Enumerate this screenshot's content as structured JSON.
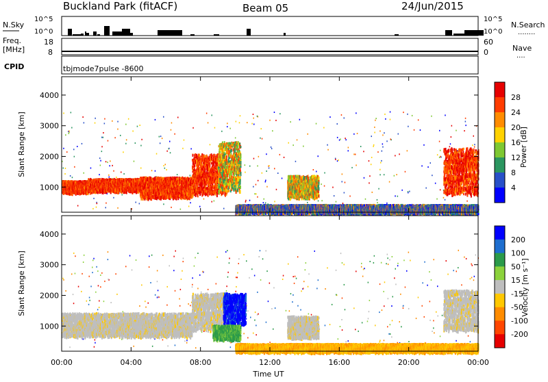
{
  "header": {
    "site": "Buckland Park (fitACF)",
    "beam": "Beam 05",
    "date": "24/Jun/2015"
  },
  "strips": {
    "nsky_label": "N.Sky",
    "nsearch_label": "N.Search",
    "nsearch_dots": "........",
    "freq_label_1": "Freq.",
    "freq_label_2": "[MHz]",
    "nave_label": "Nave",
    "nave_dots": "....",
    "cpid_label": "CPID",
    "cpid_value": "tbjmode7pulse -8600",
    "left_top_tick": "10^5",
    "left_bottom_tick": "10^0",
    "right_top_tick": "10^5",
    "right_bottom_tick": "10^0",
    "freq_ticks": [
      "18",
      "8"
    ],
    "nave_ticks": [
      "60",
      "0"
    ]
  },
  "colors": {
    "power": [
      "#0000ff",
      "#2850c8",
      "#2b9660",
      "#7ec832",
      "#ffd200",
      "#ff8c00",
      "#ff3c00",
      "#e60000"
    ],
    "velocity": [
      "#0000ff",
      "#1e6ecf",
      "#2b9a4a",
      "#8cd23c",
      "#bebebe",
      "#ffc800",
      "#ff8c00",
      "#ff4600",
      "#e60000"
    ]
  },
  "chart_data": [
    {
      "type": "heatmap",
      "name": "power",
      "xlabel": "",
      "ylabel": "Slant Range [km]",
      "ylim": [
        180,
        4600
      ],
      "xlim": [
        0,
        24
      ],
      "yticks": [
        "1000",
        "2000",
        "3000",
        "4000"
      ],
      "ytick_values": [
        1000,
        2000,
        3000,
        4000
      ],
      "colorbar": {
        "label": "Power [dB]",
        "levels": [
          "4",
          "8",
          "12",
          "16",
          "20",
          "24",
          "28"
        ],
        "range": [
          0,
          32
        ]
      },
      "bands": [
        {
          "t": [
            0,
            1.5
          ],
          "r": [
            860,
            1230
          ],
          "level": "high"
        },
        {
          "t": [
            1.5,
            4.5
          ],
          "r": [
            900,
            1300
          ],
          "level": "high"
        },
        {
          "t": [
            4.5,
            7.5
          ],
          "r": [
            700,
            1350
          ],
          "level": "high"
        },
        {
          "t": [
            7.5,
            9.5
          ],
          "r": [
            800,
            2100
          ],
          "level": "high"
        },
        {
          "t": [
            9.0,
            10.3
          ],
          "r": [
            900,
            2500
          ],
          "level": "mid"
        },
        {
          "t": [
            13.0,
            14.8
          ],
          "r": [
            700,
            1400
          ],
          "level": "mid"
        },
        {
          "t": [
            22.0,
            24.0
          ],
          "r": [
            800,
            2300
          ],
          "level": "high"
        },
        {
          "t": [
            10.0,
            24.0
          ],
          "r": [
            200,
            450
          ],
          "level": "low"
        }
      ]
    },
    {
      "type": "heatmap",
      "name": "velocity",
      "xlabel": "Time UT",
      "ylabel": "Slant Range [km]",
      "ylim": [
        180,
        4600
      ],
      "xlim": [
        0,
        24
      ],
      "yticks": [
        "1000",
        "2000",
        "3000",
        "4000"
      ],
      "ytick_values": [
        1000,
        2000,
        3000,
        4000
      ],
      "xticks": [
        "00:00",
        "04:00",
        "08:00",
        "12:00",
        "16:00",
        "20:00",
        "00:00"
      ],
      "xtick_values": [
        0,
        4,
        8,
        12,
        16,
        20,
        24
      ],
      "colorbar": {
        "label": "Velocity [m s⁻¹]",
        "levels": [
          "200",
          "100",
          "50",
          "15",
          "-15",
          "-50",
          "-100",
          "-200"
        ]
      },
      "bands": [
        {
          "t": [
            0,
            7.5
          ],
          "r": [
            700,
            1450
          ],
          "level": "grey"
        },
        {
          "t": [
            7.5,
            9.5
          ],
          "r": [
            900,
            2100
          ],
          "level": "grey"
        },
        {
          "t": [
            9.3,
            10.6
          ],
          "r": [
            1100,
            2100
          ],
          "level": "blue"
        },
        {
          "t": [
            8.7,
            10.3
          ],
          "r": [
            600,
            1050
          ],
          "level": "green"
        },
        {
          "t": [
            13.0,
            14.8
          ],
          "r": [
            650,
            1350
          ],
          "level": "grey"
        },
        {
          "t": [
            22.0,
            24.0
          ],
          "r": [
            900,
            2200
          ],
          "level": "grey"
        },
        {
          "t": [
            10.0,
            24.0
          ],
          "r": [
            200,
            450
          ],
          "level": "orange"
        }
      ]
    }
  ]
}
